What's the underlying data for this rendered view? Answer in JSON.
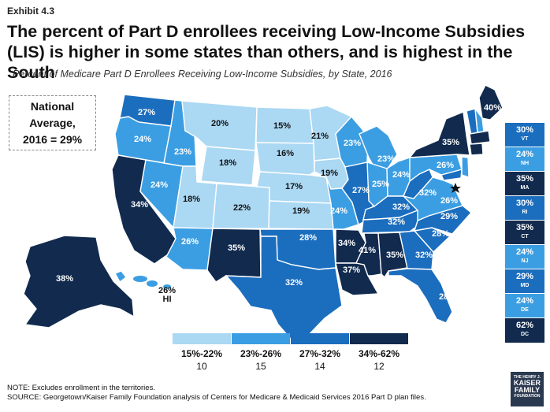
{
  "exhibit": "Exhibit 4.3",
  "title": "The percent of Part D enrollees receiving Low-Income Subsidies (LIS) is higher in some states than others, and is highest in the South",
  "subtitle": "Percent of Medicare Part D Enrollees Receiving Low-Income Subsidies, by State, 2016",
  "national": {
    "line1": "National",
    "line2": "Average,",
    "line3": "2016 = 29%"
  },
  "colors": {
    "c1": "#abd8f3",
    "c2": "#3c9ee2",
    "c3": "#1b6dbe",
    "c4": "#112a4e",
    "dark_text": "#111111",
    "light_text": "#ffffff"
  },
  "states": [
    {
      "abbr": "WA",
      "value": "27%",
      "bin": 3
    },
    {
      "abbr": "OR",
      "value": "24%",
      "bin": 2
    },
    {
      "abbr": "CA",
      "value": "34%",
      "bin": 4
    },
    {
      "abbr": "NV",
      "value": "24%",
      "bin": 2
    },
    {
      "abbr": "ID",
      "value": "23%",
      "bin": 2
    },
    {
      "abbr": "MT",
      "value": "20%",
      "bin": 1
    },
    {
      "abbr": "WY",
      "value": "18%",
      "bin": 1
    },
    {
      "abbr": "UT",
      "value": "18%",
      "bin": 1
    },
    {
      "abbr": "CO",
      "value": "22%",
      "bin": 1
    },
    {
      "abbr": "AZ",
      "value": "26%",
      "bin": 2
    },
    {
      "abbr": "NM",
      "value": "35%",
      "bin": 4
    },
    {
      "abbr": "ND",
      "value": "15%",
      "bin": 1
    },
    {
      "abbr": "SD",
      "value": "16%",
      "bin": 1
    },
    {
      "abbr": "NE",
      "value": "17%",
      "bin": 1
    },
    {
      "abbr": "KS",
      "value": "19%",
      "bin": 1
    },
    {
      "abbr": "OK",
      "value": "28%",
      "bin": 3
    },
    {
      "abbr": "TX",
      "value": "32%",
      "bin": 3
    },
    {
      "abbr": "MN",
      "value": "21%",
      "bin": 1
    },
    {
      "abbr": "IA",
      "value": "19%",
      "bin": 1
    },
    {
      "abbr": "MO",
      "value": "24%",
      "bin": 2
    },
    {
      "abbr": "AR",
      "value": "34%",
      "bin": 4
    },
    {
      "abbr": "LA",
      "value": "37%",
      "bin": 4
    },
    {
      "abbr": "WI",
      "value": "23%",
      "bin": 2
    },
    {
      "abbr": "IL",
      "value": "27%",
      "bin": 3
    },
    {
      "abbr": "MI",
      "value": "23%",
      "bin": 2
    },
    {
      "abbr": "IN",
      "value": "25%",
      "bin": 2
    },
    {
      "abbr": "OH",
      "value": "24%",
      "bin": 2
    },
    {
      "abbr": "KY",
      "value": "32%",
      "bin": 3
    },
    {
      "abbr": "TN",
      "value": "32%",
      "bin": 3
    },
    {
      "abbr": "MS",
      "value": "41%",
      "bin": 4
    },
    {
      "abbr": "AL",
      "value": "35%",
      "bin": 4
    },
    {
      "abbr": "GA",
      "value": "32%",
      "bin": 3
    },
    {
      "abbr": "FL",
      "value": "28%",
      "bin": 3
    },
    {
      "abbr": "SC",
      "value": "28%",
      "bin": 3
    },
    {
      "abbr": "NC",
      "value": "29%",
      "bin": 3
    },
    {
      "abbr": "VA",
      "value": "26%",
      "bin": 2
    },
    {
      "abbr": "WV",
      "value": "32%",
      "bin": 3
    },
    {
      "abbr": "PA",
      "value": "26%",
      "bin": 2
    },
    {
      "abbr": "NY",
      "value": "35%",
      "bin": 4
    },
    {
      "abbr": "ME",
      "value": "40%",
      "bin": 4
    },
    {
      "abbr": "AK",
      "value": "38%",
      "bin": 4
    },
    {
      "abbr": "HI",
      "value": "26%",
      "bin": 2
    }
  ],
  "sidebar": [
    {
      "value": "30%",
      "abbr": "VT",
      "bin": 3
    },
    {
      "value": "24%",
      "abbr": "NH",
      "bin": 2
    },
    {
      "value": "35%",
      "abbr": "MA",
      "bin": 4
    },
    {
      "value": "30%",
      "abbr": "RI",
      "bin": 3
    },
    {
      "value": "35%",
      "abbr": "CT",
      "bin": 4
    },
    {
      "value": "24%",
      "abbr": "NJ",
      "bin": 2
    },
    {
      "value": "29%",
      "abbr": "MD",
      "bin": 3
    },
    {
      "value": "24%",
      "abbr": "DE",
      "bin": 2
    },
    {
      "value": "62%",
      "abbr": "DC",
      "bin": 4
    }
  ],
  "legend": [
    {
      "range": "15%-22%",
      "count": "10"
    },
    {
      "range": "23%-26%",
      "count": "15"
    },
    {
      "range": "27%-32%",
      "count": "14"
    },
    {
      "range": "34%-62%",
      "count": "12"
    }
  ],
  "notes": {
    "note": "NOTE: Excludes enrollment in the territories.",
    "source": "SOURCE: Georgetown/Kaiser Family Foundation analysis of Centers for Medicare & Medicaid Services 2016 Part D plan files."
  },
  "logo": {
    "line1": "THE HENRY J.",
    "line2": "KAISER",
    "line3": "FAMILY",
    "line4": "FOUNDATION"
  }
}
